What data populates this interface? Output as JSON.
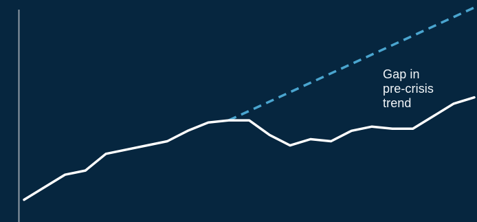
{
  "colors": {
    "background": "#06263f",
    "actual_line": "#ffffff",
    "trend_line": "#4aa5cf",
    "axis": "#8e9aa6",
    "text": "#f1f5f8"
  },
  "annotation": {
    "lines": [
      "Gap in",
      "pre-crisis",
      "trend"
    ]
  },
  "chart_data": {
    "type": "line",
    "title": "",
    "xlabel": "",
    "ylabel": "",
    "xlim": [
      0,
      22
    ],
    "ylim": [
      0,
      100
    ],
    "grid": false,
    "legend": "none",
    "series": [
      {
        "style": "solid",
        "color": "#ffffff",
        "x": [
          0,
          1,
          2,
          3,
          4,
          5,
          6,
          7,
          8,
          9,
          10,
          11,
          12,
          13,
          14,
          15,
          16,
          17,
          18,
          19,
          20,
          21,
          22
        ],
        "y": [
          9,
          15,
          21,
          23,
          31,
          33,
          35,
          37,
          42,
          46,
          47,
          47,
          40,
          35,
          38,
          37,
          42,
          44,
          43,
          43,
          49,
          55,
          58
        ]
      },
      {
        "style": "dashed",
        "color": "#4aa5cf",
        "x": [
          10,
          22
        ],
        "y": [
          47,
          101
        ]
      }
    ]
  }
}
